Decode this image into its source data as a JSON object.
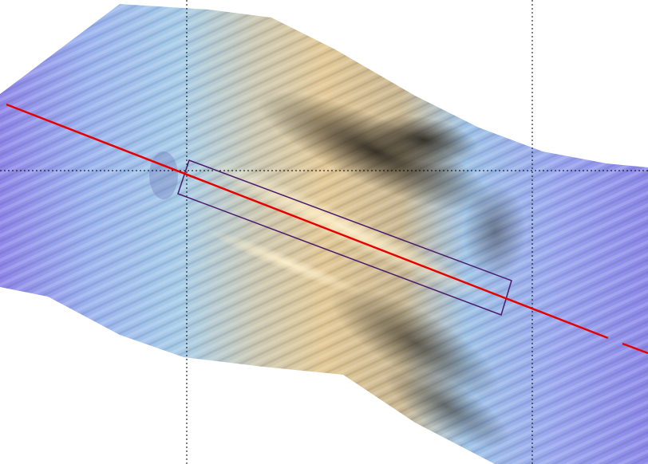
{
  "view": {
    "background": "#ffffff"
  },
  "colors": {
    "deep_water": "#8a86e6",
    "mid_water": "#9fc0ea",
    "shallow": "#d8c49a",
    "ridge_light": "#f0dcae",
    "shadow": "#2e2a22",
    "track_line": "#e60000",
    "selection_box": "#4b1a6e",
    "grid_line": "#000000"
  },
  "layers": {
    "bathymetry": "shaded-relief",
    "grid": "dotted",
    "track": "survey-track-line",
    "selection": "profile-selection-box"
  }
}
